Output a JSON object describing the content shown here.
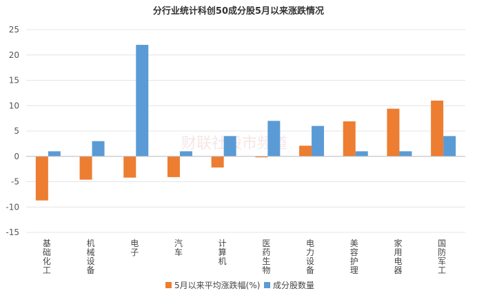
{
  "chart_data": {
    "type": "bar",
    "title": "分行业统计科创50成分股5月以来涨跌情况",
    "categories": [
      "基础化工",
      "机械设备",
      "电子",
      "汽车",
      "计算机",
      "医药生物",
      "电力设备",
      "美容护理",
      "家用电器",
      "国防军工"
    ],
    "series": [
      {
        "name": "5月以来平均涨跌幅(%)",
        "color": "#ED7D31",
        "values": [
          -8.7,
          -4.6,
          -4.2,
          -4.1,
          -2.2,
          -0.2,
          2.1,
          6.9,
          9.4,
          11
        ]
      },
      {
        "name": "成分股数量",
        "color": "#5B9BD5",
        "values": [
          1,
          3,
          22,
          1,
          4,
          7,
          6,
          1,
          1,
          4
        ]
      }
    ],
    "ylim": [
      -15,
      25
    ],
    "yticks": [
      -15,
      -10,
      -5,
      0,
      5,
      10,
      15,
      20,
      25
    ],
    "xlabel": "",
    "ylabel": "",
    "grid": true,
    "legend": "bottom"
  },
  "watermark": "财联社股市频道"
}
